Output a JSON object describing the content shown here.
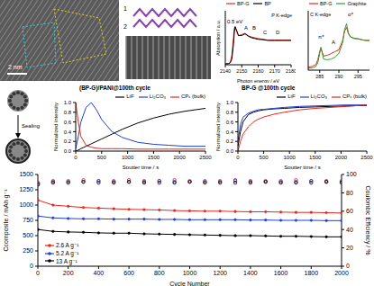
{
  "tem_image": {
    "scale_bar": "2 nm"
  },
  "structure": {
    "labels": [
      "1",
      "2"
    ]
  },
  "illustration": {
    "label": "Sealing"
  },
  "chart_data": [
    {
      "type": "line",
      "title": "P K-edge",
      "xlabel": "Photon energy / eV",
      "ylabel": "Absorption / a.u.",
      "x": [
        2140,
        2142,
        2143,
        2144,
        2145,
        2145.5,
        2146,
        2147,
        2148,
        2150,
        2152,
        2154,
        2156,
        2158,
        2160,
        2163,
        2166,
        2170,
        2175,
        2180
      ],
      "series": [
        {
          "name": "BP-G",
          "color": "#e8261c",
          "values": [
            0.02,
            0.03,
            0.06,
            0.25,
            0.7,
            0.95,
            1.0,
            0.85,
            0.75,
            0.78,
            0.82,
            0.75,
            0.72,
            0.7,
            0.68,
            0.66,
            0.64,
            0.64,
            0.64,
            0.64
          ]
        },
        {
          "name": "BP",
          "color": "#000000",
          "values": [
            0.02,
            0.03,
            0.05,
            0.15,
            0.55,
            0.85,
            0.98,
            0.88,
            0.76,
            0.76,
            0.8,
            0.74,
            0.7,
            0.68,
            0.66,
            0.65,
            0.63,
            0.63,
            0.63,
            0.63
          ]
        }
      ],
      "xlim": [
        2140,
        2180
      ],
      "xticks": [
        2140,
        2150,
        2160,
        2170,
        2180
      ],
      "ylim": [
        0,
        1.4
      ],
      "tick_labels": "x",
      "legend": "upper left",
      "annotations": [
        "0.5 eV",
        "A",
        "B",
        "C",
        "D"
      ]
    },
    {
      "type": "line",
      "title": "C K-edge",
      "x": [
        282,
        283,
        284,
        284.5,
        285,
        285.3,
        285.6,
        286,
        287,
        288,
        289,
        290,
        291,
        291.5,
        292,
        292.5,
        293,
        294,
        295,
        296,
        297,
        298
      ],
      "series": [
        {
          "name": "BP-G",
          "color": "#e8261c",
          "values": [
            0.08,
            0.1,
            0.15,
            0.28,
            0.5,
            0.58,
            0.5,
            0.38,
            0.4,
            0.45,
            0.5,
            0.55,
            0.8,
            1.05,
            1.15,
            0.98,
            0.9,
            0.86,
            0.84,
            0.82,
            0.8,
            0.8
          ]
        },
        {
          "name": "Graphite",
          "color": "#2ca02c",
          "values": [
            0.05,
            0.06,
            0.1,
            0.2,
            0.45,
            0.62,
            0.5,
            0.3,
            0.28,
            0.3,
            0.35,
            0.45,
            0.75,
            1.1,
            1.25,
            1.0,
            0.9,
            0.85,
            0.85,
            0.82,
            0.8,
            0.8
          ]
        }
      ],
      "xlim": [
        282,
        298
      ],
      "xticks": [
        285,
        290,
        295
      ],
      "ylim": [
        0,
        1.6
      ],
      "tick_labels": "x",
      "legend": "upper left",
      "annotations": [
        "π*",
        "σ*",
        "A"
      ]
    },
    {
      "type": "line",
      "title": "(BP-G)/PANI@100th cycle",
      "xlabel": "Sputter time / s",
      "ylabel": "Normalized intensity",
      "x": [
        0,
        50,
        100,
        200,
        300,
        400,
        500,
        700,
        900,
        1200,
        1500,
        1800,
        2100,
        2500
      ],
      "series": [
        {
          "name": "LiF",
          "color": "#000000",
          "values": [
            0,
            0.02,
            0.05,
            0.1,
            0.15,
            0.2,
            0.25,
            0.35,
            0.45,
            0.58,
            0.68,
            0.76,
            0.82,
            0.88
          ]
        },
        {
          "name": "Li₂CO₃",
          "color": "#1f3fd6",
          "values": [
            0.05,
            0.3,
            0.6,
            0.9,
            1.0,
            0.85,
            0.65,
            0.4,
            0.28,
            0.18,
            0.14,
            0.12,
            0.1,
            0.1
          ]
        },
        {
          "name": "CPₓ (bulk)",
          "color": "#e8261c",
          "values": [
            1.0,
            0.6,
            0.3,
            0.12,
            0.08,
            0.06,
            0.05,
            0.05,
            0.05,
            0.04,
            0.04,
            0.04,
            0.04,
            0.04
          ]
        }
      ],
      "xlim": [
        0,
        2500
      ],
      "xticks": [
        0,
        500,
        1000,
        1500,
        2000,
        2500
      ],
      "ylim": [
        0,
        1
      ],
      "yticks": [
        {
          "value": 0,
          "label": "0.0"
        },
        0.2,
        0.4,
        0.6,
        0.8,
        {
          "value": 1,
          "label": "1.0"
        }
      ],
      "legend": "upper right"
    },
    {
      "type": "line",
      "title": "BP-G @100th cycle",
      "xlabel": "Sputter time / s",
      "ylabel": "Normalized intensity",
      "x": [
        0,
        50,
        100,
        200,
        300,
        400,
        500,
        700,
        900,
        1200,
        1500,
        1800,
        2100,
        2500
      ],
      "series": [
        {
          "name": "LiF",
          "color": "#000000",
          "values": [
            0.1,
            0.4,
            0.6,
            0.75,
            0.8,
            0.83,
            0.85,
            0.87,
            0.88,
            0.9,
            0.91,
            0.92,
            0.93,
            0.94
          ]
        },
        {
          "name": "Li₂CO₃",
          "color": "#1f3fd6",
          "values": [
            0.2,
            0.55,
            0.7,
            0.78,
            0.82,
            0.85,
            0.86,
            0.88,
            0.9,
            0.92,
            0.93,
            0.94,
            0.95,
            0.95
          ]
        },
        {
          "name": "CPₓ (bulk)",
          "color": "#e8261c",
          "values": [
            0,
            0.2,
            0.35,
            0.5,
            0.6,
            0.66,
            0.7,
            0.76,
            0.8,
            0.85,
            0.88,
            0.9,
            0.92,
            0.95
          ]
        }
      ],
      "xlim": [
        0,
        2500
      ],
      "xticks": [
        0,
        500,
        1000,
        1500,
        2000,
        2500
      ],
      "ylim": [
        0,
        1
      ],
      "yticks": [
        {
          "value": 0,
          "label": "0.0"
        },
        0.2,
        0.4,
        0.6,
        0.8,
        {
          "value": 1,
          "label": "1.0"
        }
      ],
      "legend": "upper right"
    },
    {
      "type": "line",
      "xlabel": "Cycle Number",
      "ylabel": "Ccomposite / mAh g⁻¹",
      "y2label": "Coulombic Efficiency / %",
      "x": [
        1,
        100,
        200,
        300,
        400,
        500,
        600,
        700,
        800,
        900,
        1000,
        1100,
        1200,
        1300,
        1400,
        1500,
        1600,
        1700,
        1800,
        1900,
        2000
      ],
      "series": [
        {
          "name": "2.6 A g⁻¹",
          "color": "#e8261c",
          "marker": "circle",
          "values": [
            1080,
            1000,
            980,
            960,
            950,
            940,
            930,
            925,
            920,
            910,
            905,
            900,
            900,
            895,
            890,
            890,
            885,
            880,
            880,
            875,
            870
          ]
        },
        {
          "name": "5.2 A g⁻¹",
          "color": "#1f3fd6",
          "marker": "circle",
          "values": [
            820,
            790,
            780,
            775,
            775,
            770,
            770,
            770,
            765,
            765,
            760,
            760,
            760,
            760,
            755,
            755,
            750,
            750,
            750,
            745,
            745
          ]
        },
        {
          "name": "13 A g⁻¹",
          "color": "#000000",
          "marker": "circle",
          "values": [
            600,
            570,
            560,
            555,
            545,
            540,
            540,
            530,
            525,
            520,
            515,
            510,
            505,
            500,
            500,
            495,
            490,
            490,
            485,
            480,
            480
          ]
        },
        {
          "color": "#e8261c",
          "axis": "y2",
          "marker": "open_circle",
          "line_style": "none",
          "values": [
            90,
            93,
            93,
            94,
            93,
            93,
            94,
            93,
            93,
            94,
            93,
            93,
            93,
            94,
            93,
            93,
            93,
            94,
            93,
            93,
            93
          ]
        },
        {
          "color": "#1f3fd6",
          "axis": "y2",
          "marker": "open_circle",
          "line_style": "none",
          "values": [
            91,
            92,
            92,
            92,
            93,
            92,
            92,
            92,
            93,
            92,
            92,
            92,
            92,
            93,
            92,
            92,
            92,
            92,
            93,
            92,
            92
          ]
        },
        {
          "color": "#000000",
          "axis": "y2",
          "marker": "open_circle",
          "line_style": "none",
          "values": [
            89,
            91,
            91,
            92,
            91,
            91,
            92,
            91,
            91,
            91,
            92,
            91,
            91,
            91,
            91,
            92,
            91,
            91,
            91,
            92,
            91
          ]
        }
      ],
      "xlim": [
        0,
        2000
      ],
      "xticks": [
        0,
        200,
        400,
        600,
        800,
        1000,
        1200,
        1400,
        1600,
        1800,
        2000
      ],
      "ylim": [
        0,
        1500
      ],
      "yticks": [
        0,
        250,
        500,
        750,
        1000,
        1250,
        1500
      ],
      "y2lim": [
        0,
        100
      ],
      "y2ticks": [
        0,
        20,
        40,
        60,
        80,
        100
      ],
      "legend": "lower left"
    }
  ]
}
